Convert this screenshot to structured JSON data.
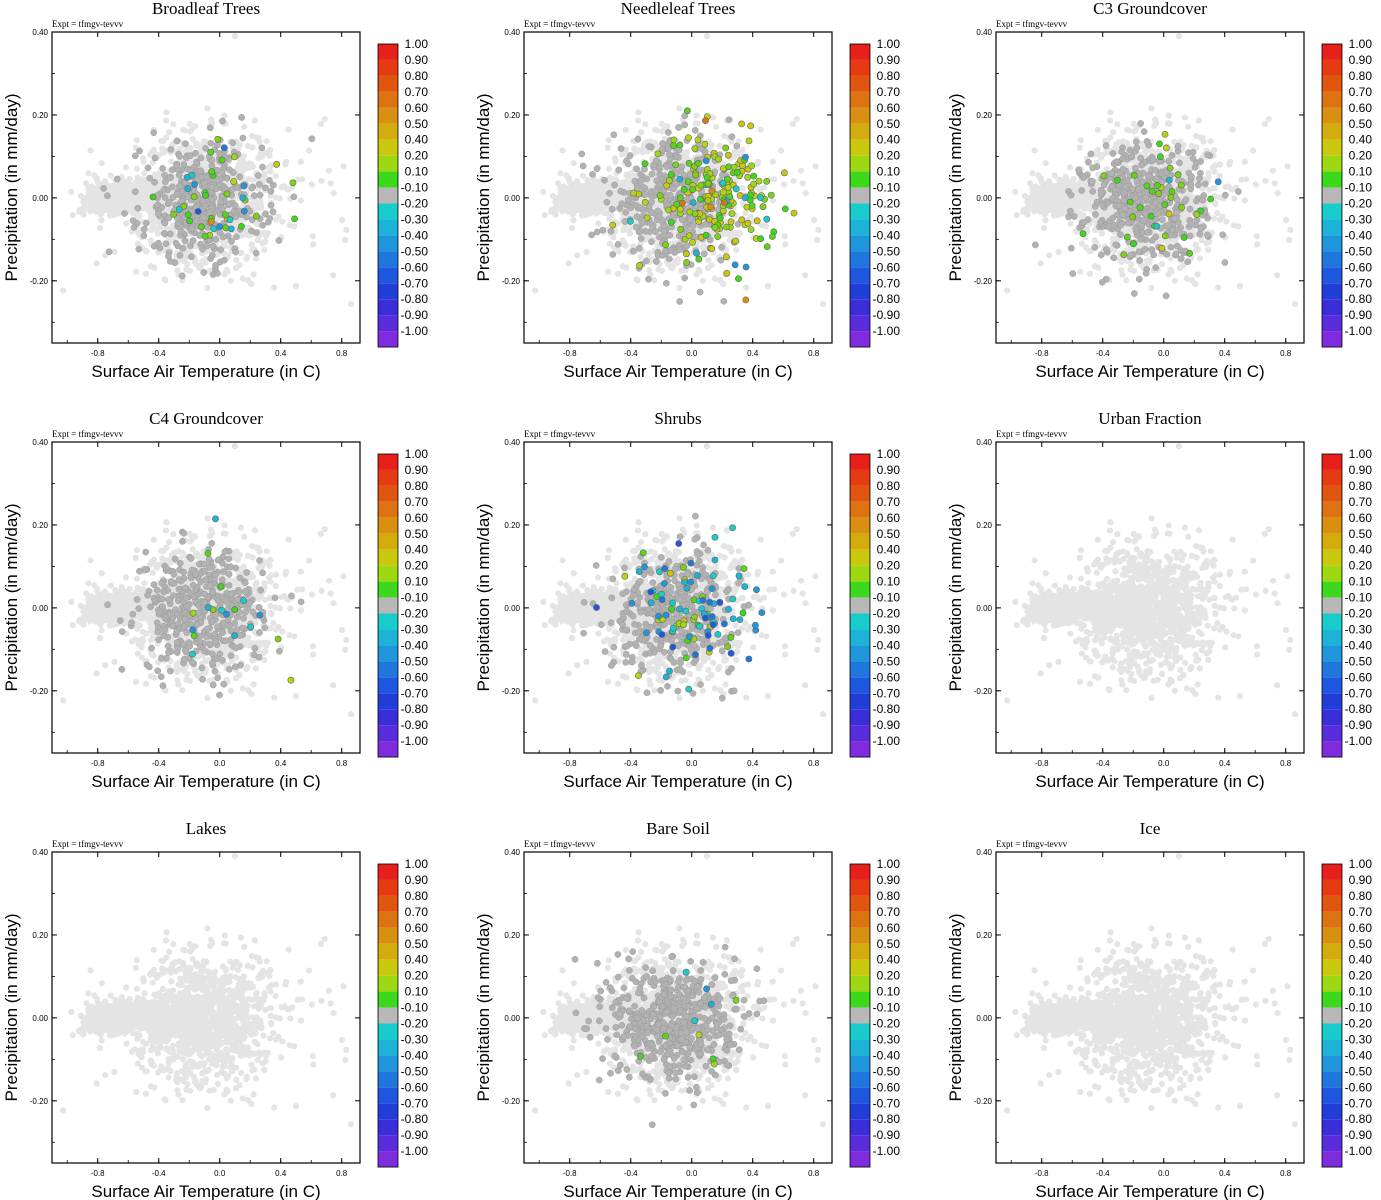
{
  "chart_data": {
    "type": "scatter",
    "layout": "3x3 grid of panels",
    "expt_label": "Expt = tfmgv-tevvv",
    "xlabel": "Surface Air Temperature (in C)",
    "ylabel": "Precipitation (in mm/day)",
    "xlim": [
      -1.1,
      0.92
    ],
    "ylim": [
      -0.35,
      0.4
    ],
    "x_ticks": [
      "-0.8",
      "-0.4",
      "0.0",
      "0.4",
      "0.8"
    ],
    "y_ticks": [
      "0.40",
      "0.20",
      "0.00",
      "-0.20"
    ],
    "colorbar": {
      "labels": [
        "1.00",
        "0.90",
        "0.80",
        "0.70",
        "0.60",
        "0.50",
        "0.40",
        "0.20",
        "0.10",
        "-0.10",
        "-0.20",
        "-0.30",
        "-0.40",
        "-0.50",
        "-0.60",
        "-0.70",
        "-0.80",
        "-0.90",
        "-1.00"
      ],
      "colors": [
        "#e8201c",
        "#e63a12",
        "#e1560f",
        "#dc7310",
        "#d89010",
        "#d3ab0c",
        "#c9c80c",
        "#9ed813",
        "#3cd81c",
        "#b8b8b8",
        "#18cccc",
        "#1cb3d6",
        "#1f96dc",
        "#1f77de",
        "#1f58e0",
        "#213ed8",
        "#3a2ed8",
        "#5a2ddc",
        "#7f2bde"
      ]
    },
    "background_point_color": "#e4e4e4",
    "neutral_point_color": "#b2b2b2",
    "panels": [
      {
        "title": "Broadleaf Trees",
        "counts": {
          "neutral": 420,
          "green": 24,
          "yellowgreen": 6,
          "cyan": 12,
          "blue": 2,
          "orange": 1
        }
      },
      {
        "title": "Needleleaf Trees",
        "counts": {
          "neutral": 380,
          "green": 60,
          "yellowgreen": 120,
          "cyan": 14,
          "blue": 0,
          "orange": 6
        }
      },
      {
        "title": "C3 Groundcover",
        "counts": {
          "neutral": 460,
          "green": 30,
          "yellowgreen": 6,
          "cyan": 3,
          "blue": 0,
          "orange": 0
        }
      },
      {
        "title": "C4 Groundcover",
        "counts": {
          "neutral": 420,
          "green": 6,
          "yellowgreen": 2,
          "cyan": 10,
          "blue": 0,
          "orange": 0
        }
      },
      {
        "title": "Shrubs",
        "counts": {
          "neutral": 380,
          "green": 16,
          "yellowgreen": 14,
          "cyan": 50,
          "blue": 20,
          "orange": 0
        }
      },
      {
        "title": "Urban Fraction",
        "counts": {
          "neutral": 0,
          "green": 0,
          "yellowgreen": 0,
          "cyan": 0,
          "blue": 0,
          "orange": 0
        }
      },
      {
        "title": "Lakes",
        "counts": {
          "neutral": 0,
          "green": 0,
          "yellowgreen": 0,
          "cyan": 0,
          "blue": 0,
          "orange": 0
        }
      },
      {
        "title": "Bare Soil",
        "counts": {
          "neutral": 520,
          "green": 4,
          "yellowgreen": 2,
          "cyan": 4,
          "blue": 0,
          "orange": 0
        }
      },
      {
        "title": "Ice",
        "counts": {
          "neutral": 0,
          "green": 0,
          "yellowgreen": 0,
          "cyan": 0,
          "blue": 0,
          "orange": 0
        }
      }
    ]
  }
}
